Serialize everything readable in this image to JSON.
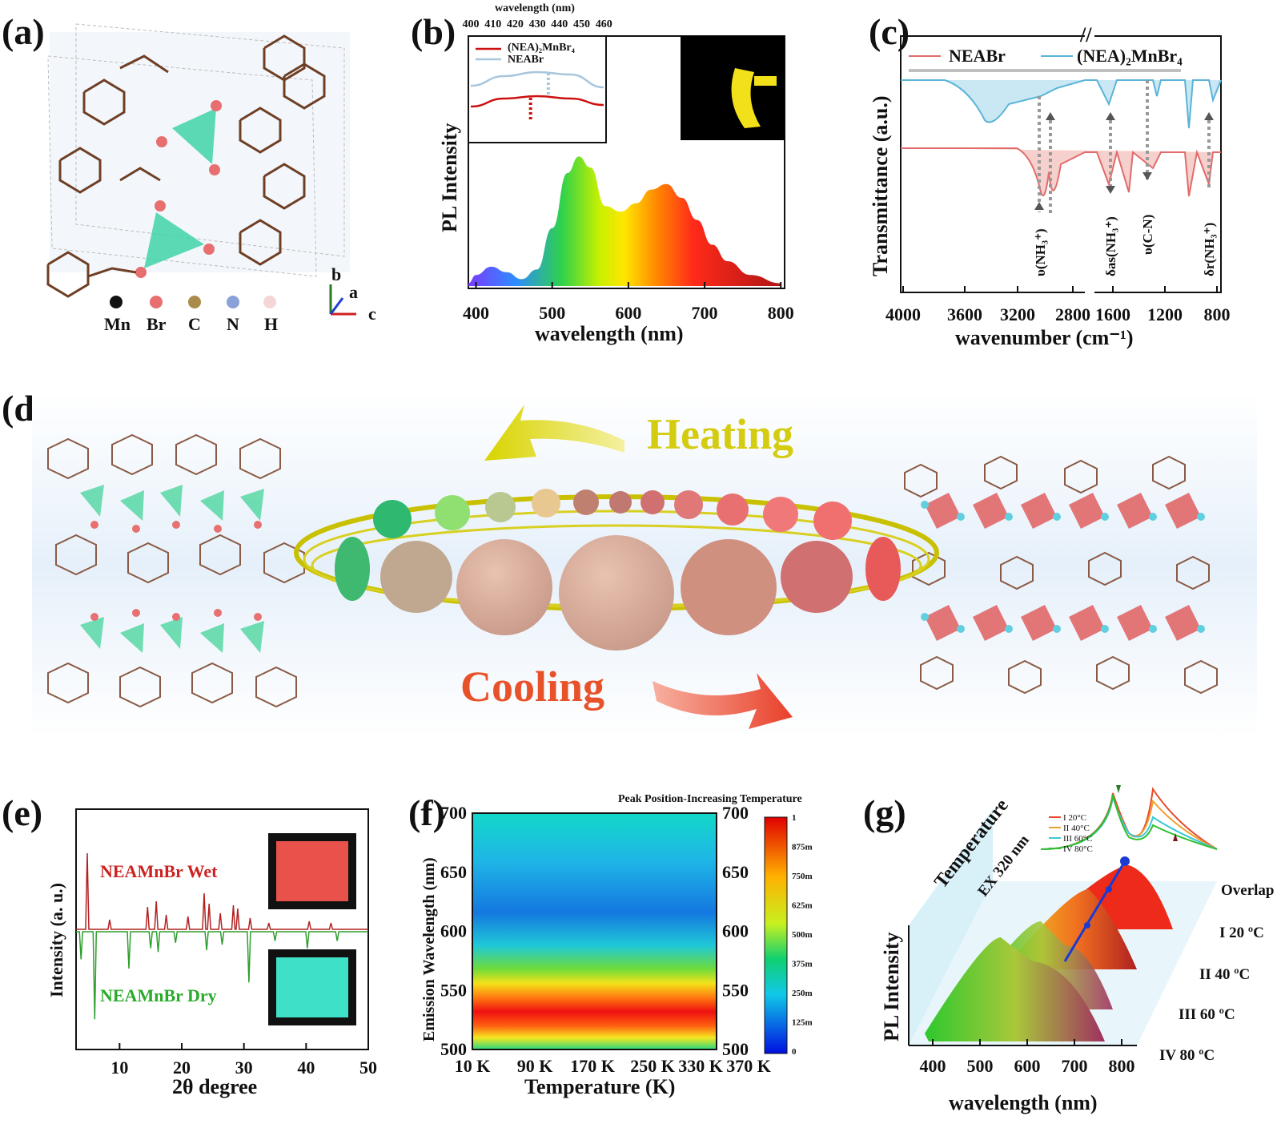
{
  "panels": {
    "a": {
      "label": "(a)",
      "legend": [
        "Mn",
        "Br",
        "C",
        "N",
        "H"
      ],
      "legend_colors": [
        "#111111",
        "#e76f6f",
        "#a98c4a",
        "#8aa2d8",
        "#f5d6d6"
      ],
      "axes": [
        "b",
        "a",
        "c"
      ]
    },
    "b": {
      "label": "(b)"
    },
    "c": {
      "label": "(c)"
    },
    "d": {
      "label": "(d)",
      "heating": "Heating",
      "cooling": "Cooling"
    },
    "e": {
      "label": "(e)"
    },
    "f": {
      "label": "(f)"
    },
    "g": {
      "label": "(g)",
      "temperature": "Temperature",
      "ex": "EX 320 nm"
    }
  },
  "chart_data": [
    {
      "id": "b",
      "type": "area",
      "xlabel": "wavelength (nm)",
      "ylabel": "PL Intensity",
      "xlim": [
        390,
        805
      ],
      "xticks": [
        400,
        500,
        600,
        700,
        800
      ],
      "series": [
        {
          "x": [
            390,
            400,
            420,
            440,
            460,
            480,
            500,
            520,
            535,
            550,
            570,
            590,
            610,
            630,
            650,
            670,
            690,
            710,
            730,
            760,
            800
          ],
          "values": [
            0.02,
            0.08,
            0.14,
            0.1,
            0.05,
            0.12,
            0.42,
            0.82,
            0.94,
            0.86,
            0.58,
            0.54,
            0.6,
            0.7,
            0.74,
            0.64,
            0.48,
            0.3,
            0.18,
            0.08,
            0.02
          ]
        }
      ],
      "inset": {
        "xlabel": "wavelength (nm)",
        "xticks": [
          400,
          410,
          420,
          430,
          440,
          450,
          460
        ],
        "series": [
          {
            "name": "(NEA)₂MnBr₄",
            "color": "#cc1111",
            "x": [
              400,
              415,
              430,
              445,
              460
            ],
            "values": [
              0.42,
              0.52,
              0.55,
              0.52,
              0.44
            ],
            "peak": 427
          },
          {
            "name": "NEABr",
            "color": "#a8c6dc",
            "x": [
              400,
              415,
              430,
              445,
              460
            ],
            "values": [
              0.68,
              0.8,
              0.85,
              0.82,
              0.66
            ],
            "peak": 435
          }
        ]
      }
    },
    {
      "id": "c",
      "type": "line",
      "xlabel": "wavenumber (cm⁻¹)",
      "ylabel": "Transmittance (a.u.)",
      "xticks": [
        "4000",
        "3600",
        "3200",
        "2800",
        "1600",
        "1200",
        "800"
      ],
      "legend": [
        {
          "name": "NEABr",
          "color": "#e26b6b"
        },
        {
          "name": "(NEA)₂MnBr₄",
          "color": "#5ab4d8"
        }
      ],
      "annotations": [
        "υ(NH₃⁺)",
        "δas(NH₃⁺)",
        "υ(C-N)",
        "δr(NH₃⁺)"
      ]
    },
    {
      "id": "e",
      "type": "line",
      "xlabel": "2θ degree",
      "ylabel": "Intensity (a. u.)",
      "xlim": [
        3,
        50
      ],
      "xticks": [
        10,
        20,
        30,
        40,
        50
      ],
      "series": [
        {
          "name": "NEAMnBr Wet",
          "color": "#b22222",
          "peaks": [
            [
              4.8,
              0.95
            ],
            [
              8.4,
              0.12
            ],
            [
              14.5,
              0.28
            ],
            [
              15.9,
              0.35
            ],
            [
              17.5,
              0.18
            ],
            [
              21,
              0.16
            ],
            [
              23.6,
              0.45
            ],
            [
              24.4,
              0.32
            ],
            [
              26.2,
              0.2
            ],
            [
              28.3,
              0.3
            ],
            [
              29,
              0.26
            ],
            [
              31,
              0.14
            ],
            [
              34,
              0.08
            ],
            [
              40.5,
              0.1
            ],
            [
              44,
              0.08
            ]
          ]
        },
        {
          "name": "NEAMnBr Dry",
          "color": "#2e9e2e",
          "peaks": [
            [
              3.8,
              0.3
            ],
            [
              6,
              0.95
            ],
            [
              11.5,
              0.4
            ],
            [
              15,
              0.18
            ],
            [
              16.2,
              0.22
            ],
            [
              19,
              0.12
            ],
            [
              24,
              0.2
            ],
            [
              26.5,
              0.14
            ],
            [
              30.8,
              0.55
            ],
            [
              35,
              0.1
            ],
            [
              40.2,
              0.18
            ],
            [
              45,
              0.1
            ]
          ]
        }
      ],
      "inset_colors": [
        "#e8524a",
        "#3ee0c8"
      ]
    },
    {
      "id": "f",
      "type": "heatmap",
      "title": "Peak Position-Increasing Temperature",
      "xlabel": "Temperature (K)",
      "ylabel": "Emission Wavelength (nm)",
      "xticks": [
        "10 K",
        "90 K",
        "170 K",
        "250 K",
        "330 K",
        "370 K"
      ],
      "ylim": [
        500,
        700
      ],
      "yticks": [
        500,
        550,
        600,
        650,
        700
      ],
      "colorbar_ticks": [
        "1",
        "875m",
        "750m",
        "625m",
        "500m",
        "375m",
        "250m",
        "125m",
        "0"
      ]
    },
    {
      "id": "g",
      "type": "area",
      "xlabel": "wavelength (nm)",
      "ylabel": "PL Intensity",
      "xticks": [
        400,
        500,
        600,
        700,
        800
      ],
      "series": [
        {
          "name": "I 20°C",
          "color": "#e84a2a"
        },
        {
          "name": "II 40°C",
          "color": "#f0a030"
        },
        {
          "name": "III 60°C",
          "color": "#3ec8d8"
        },
        {
          "name": "IV 80°C",
          "color": "#30c030"
        }
      ],
      "row_labels": [
        "Overlap",
        "I 20 ºC",
        "II 40 ºC",
        "III 60 ºC",
        "IV 80 ºC"
      ]
    }
  ]
}
